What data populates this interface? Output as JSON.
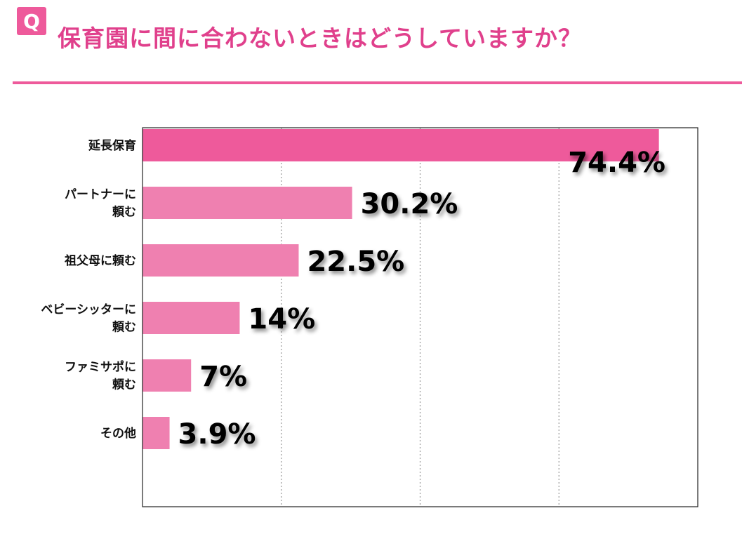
{
  "header": {
    "badge": "Q",
    "title": "保育園に間に合わないときはどうしていますか？"
  },
  "colors": {
    "accent": "#ee5a9b",
    "title": "#e0408c",
    "bar_top": "#ee5a9b",
    "bar": "#ef80b0"
  },
  "chart_data": {
    "type": "bar",
    "orientation": "horizontal",
    "categories": [
      "延長保育",
      "パートナーに頼む",
      "祖父母に頼む",
      "ベビーシッターに頼む",
      "ファミサポに頼む",
      "その他"
    ],
    "category_lines": [
      [
        "延長保育"
      ],
      [
        "パートナーに",
        "頼む"
      ],
      [
        "祖父母に頼む"
      ],
      [
        "ベビーシッターに",
        "頼む"
      ],
      [
        "ファミサポに",
        "頼む"
      ],
      [
        "その他"
      ]
    ],
    "values": [
      74.4,
      30.2,
      22.5,
      14,
      7,
      3.9
    ],
    "labels": [
      "74.4%",
      "30.2%",
      "22.5%",
      "14%",
      "7%",
      "3.9%"
    ],
    "xlim": [
      0,
      80
    ],
    "grid": "vertical-dotted",
    "title": "保育園に間に合わないときはどうしていますか？"
  }
}
